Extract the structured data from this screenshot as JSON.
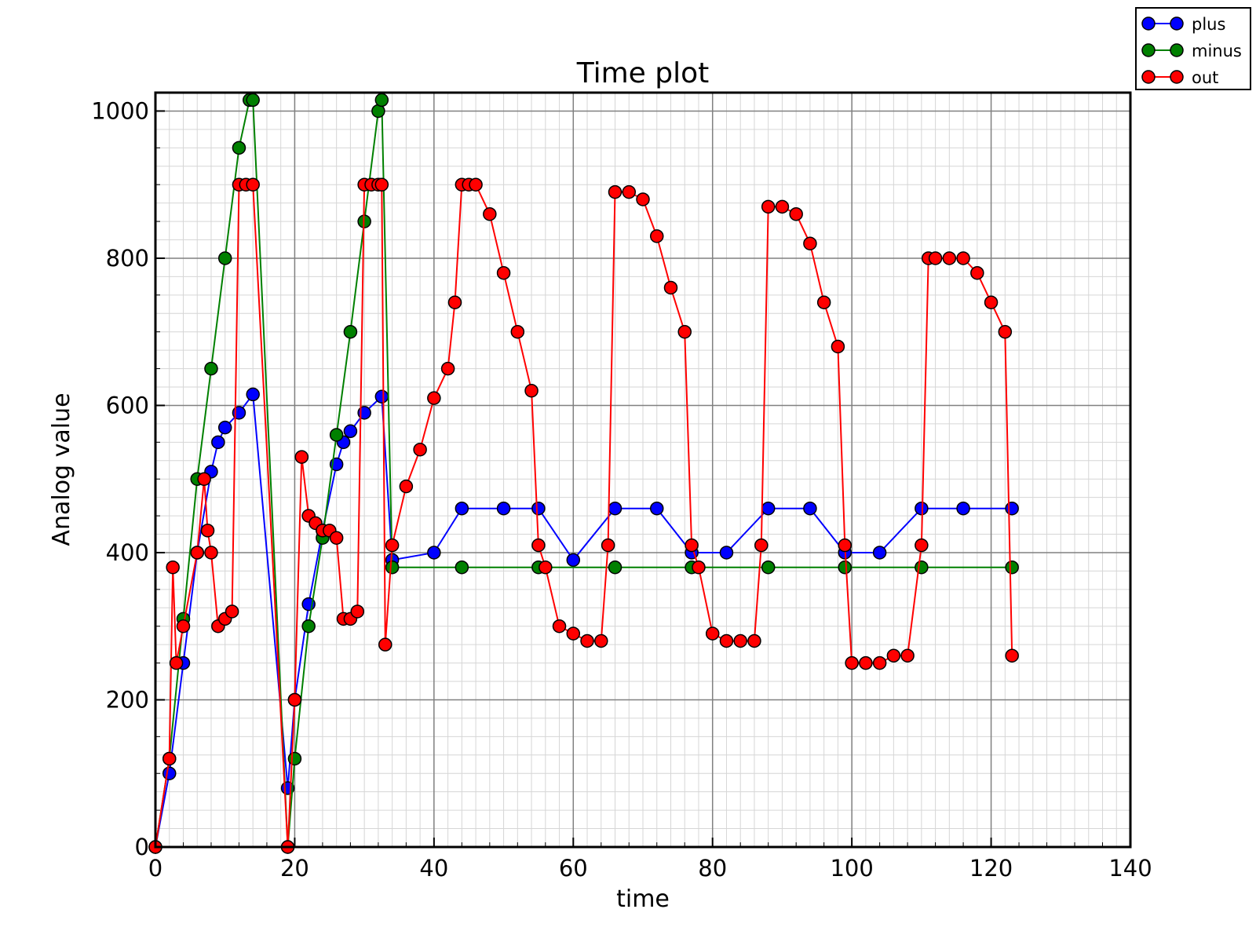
{
  "chart_data": {
    "type": "line",
    "title": "Time plot",
    "xlabel": "time",
    "ylabel": "Analog value",
    "xlim": [
      0,
      140
    ],
    "ylim": [
      0,
      1025
    ],
    "xticks": [
      0,
      20,
      40,
      60,
      80,
      100,
      120,
      140
    ],
    "yticks": [
      0,
      200,
      400,
      600,
      800,
      1000
    ],
    "grid": true,
    "minor_grid": true,
    "legend_position": "top-right (outside plot)",
    "markers": "circle",
    "series": [
      {
        "name": "plus",
        "color": "#0000ff",
        "x": [
          0,
          2,
          4,
          6,
          8,
          9,
          10,
          12,
          14,
          19,
          20,
          22,
          24,
          26,
          27,
          28,
          30,
          32.5,
          34,
          40,
          44,
          50,
          55,
          60,
          66,
          72,
          77,
          82,
          88,
          94,
          99,
          104,
          110,
          116,
          123
        ],
        "values": [
          0,
          100,
          250,
          400,
          510,
          550,
          570,
          590,
          615,
          80,
          200,
          330,
          430,
          520,
          550,
          565,
          590,
          612,
          390,
          400,
          460,
          460,
          460,
          390,
          460,
          460,
          400,
          400,
          460,
          460,
          400,
          400,
          460,
          460,
          460
        ]
      },
      {
        "name": "minus",
        "color": "#008000",
        "x": [
          0,
          2,
          4,
          6,
          8,
          10,
          12,
          13.5,
          14,
          19,
          20,
          22,
          24,
          26,
          28,
          30,
          32,
          32.5,
          34,
          44,
          55,
          66,
          77,
          88,
          99,
          110,
          123
        ],
        "values": [
          0,
          120,
          310,
          500,
          650,
          800,
          950,
          1015,
          1015,
          0,
          120,
          300,
          420,
          560,
          700,
          850,
          1000,
          1015,
          380,
          380,
          380,
          380,
          380,
          380,
          380,
          380,
          380
        ]
      },
      {
        "name": "out",
        "color": "#ff0000",
        "x": [
          0,
          2,
          2.5,
          3,
          4,
          6,
          7,
          7.5,
          8,
          9,
          10,
          11,
          12,
          13,
          14,
          19,
          20,
          21,
          22,
          23,
          24,
          25,
          26,
          27,
          28,
          29,
          30,
          31,
          32,
          32.5,
          33,
          34,
          36,
          38,
          40,
          42,
          43,
          44,
          45,
          46,
          48,
          50,
          52,
          54,
          55,
          56,
          58,
          60,
          62,
          64,
          65,
          66,
          68,
          70,
          72,
          74,
          76,
          77,
          78,
          80,
          82,
          84,
          86,
          87,
          88,
          90,
          92,
          94,
          96,
          98,
          99,
          100,
          102,
          104,
          106,
          108,
          110,
          111,
          112,
          114,
          116,
          118,
          120,
          122,
          123
        ],
        "values": [
          0,
          120,
          380,
          250,
          300,
          400,
          500,
          430,
          400,
          300,
          310,
          320,
          900,
          900,
          900,
          0,
          200,
          530,
          450,
          440,
          430,
          430,
          420,
          310,
          310,
          320,
          900,
          900,
          900,
          900,
          275,
          410,
          490,
          540,
          610,
          650,
          740,
          900,
          900,
          900,
          860,
          780,
          700,
          620,
          410,
          380,
          300,
          290,
          280,
          280,
          410,
          890,
          890,
          880,
          830,
          760,
          700,
          410,
          380,
          290,
          280,
          280,
          280,
          410,
          870,
          870,
          860,
          820,
          740,
          680,
          410,
          250,
          250,
          250,
          260,
          260,
          410,
          800,
          800,
          800,
          800,
          780,
          740,
          700,
          260
        ]
      }
    ]
  }
}
